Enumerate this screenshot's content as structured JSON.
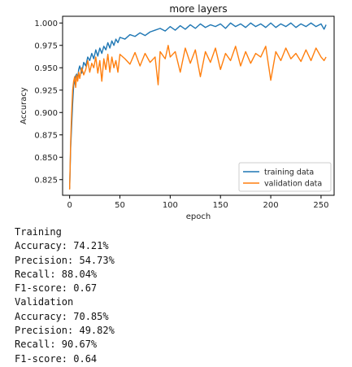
{
  "chart_data": {
    "type": "line",
    "title": "more layers",
    "xlabel": "epoch",
    "ylabel": "Accuracy",
    "xlim": [
      -7,
      263
    ],
    "ylim": [
      0.8075,
      1.0075
    ],
    "x_ticks": [
      0,
      50,
      100,
      150,
      200,
      250
    ],
    "y_ticks": [
      0.825,
      0.85,
      0.875,
      0.9,
      0.925,
      0.95,
      0.975,
      1.0
    ],
    "y_tick_labels": [
      "0.825",
      "0.850",
      "0.875",
      "0.900",
      "0.925",
      "0.950",
      "0.975",
      "1.000"
    ],
    "legend_position": "lower-right",
    "grid": false,
    "series": [
      {
        "name": "training data",
        "color": "#1f77b4",
        "x": [
          0,
          1,
          2,
          3,
          4,
          5,
          6,
          7,
          8,
          9,
          10,
          12,
          14,
          16,
          18,
          20,
          22,
          24,
          26,
          28,
          30,
          32,
          34,
          36,
          38,
          40,
          42,
          44,
          46,
          48,
          50,
          55,
          60,
          65,
          70,
          75,
          80,
          85,
          90,
          95,
          100,
          105,
          110,
          115,
          120,
          125,
          130,
          135,
          140,
          145,
          150,
          155,
          160,
          165,
          170,
          175,
          180,
          185,
          190,
          195,
          200,
          205,
          210,
          215,
          220,
          225,
          230,
          235,
          240,
          245,
          250,
          253,
          255
        ],
        "values": [
          0.815,
          0.86,
          0.885,
          0.91,
          0.93,
          0.935,
          0.941,
          0.943,
          0.938,
          0.948,
          0.952,
          0.944,
          0.956,
          0.952,
          0.962,
          0.958,
          0.966,
          0.96,
          0.97,
          0.963,
          0.972,
          0.966,
          0.974,
          0.97,
          0.978,
          0.972,
          0.98,
          0.975,
          0.982,
          0.978,
          0.984,
          0.982,
          0.987,
          0.985,
          0.989,
          0.986,
          0.99,
          0.992,
          0.994,
          0.991,
          0.996,
          0.992,
          0.997,
          0.993,
          0.998,
          0.994,
          0.999,
          0.995,
          0.998,
          0.996,
          0.999,
          0.994,
          1.0,
          0.996,
          0.999,
          0.995,
          1.0,
          0.996,
          0.999,
          0.995,
          1.0,
          0.995,
          0.999,
          0.996,
          1.0,
          0.995,
          0.999,
          0.996,
          1.0,
          0.996,
          0.999,
          0.993,
          0.998
        ]
      },
      {
        "name": "validation data",
        "color": "#ff7f0e",
        "x": [
          0,
          1,
          2,
          3,
          4,
          5,
          6,
          7,
          8,
          9,
          10,
          12,
          14,
          16,
          18,
          20,
          22,
          24,
          26,
          28,
          30,
          32,
          34,
          36,
          38,
          40,
          42,
          44,
          46,
          48,
          50,
          55,
          60,
          65,
          70,
          75,
          80,
          85,
          88,
          90,
          95,
          98,
          100,
          105,
          110,
          115,
          120,
          125,
          130,
          135,
          140,
          145,
          150,
          155,
          160,
          165,
          170,
          175,
          180,
          185,
          190,
          195,
          200,
          205,
          210,
          215,
          220,
          225,
          230,
          235,
          240,
          245,
          250,
          253,
          255
        ],
        "values": [
          0.814,
          0.866,
          0.9,
          0.925,
          0.935,
          0.94,
          0.928,
          0.942,
          0.935,
          0.945,
          0.938,
          0.95,
          0.942,
          0.948,
          0.958,
          0.945,
          0.955,
          0.95,
          0.962,
          0.944,
          0.958,
          0.935,
          0.96,
          0.948,
          0.965,
          0.945,
          0.962,
          0.95,
          0.958,
          0.945,
          0.965,
          0.96,
          0.954,
          0.967,
          0.952,
          0.966,
          0.956,
          0.962,
          0.931,
          0.968,
          0.96,
          0.975,
          0.962,
          0.968,
          0.945,
          0.972,
          0.955,
          0.97,
          0.94,
          0.968,
          0.956,
          0.972,
          0.948,
          0.966,
          0.958,
          0.974,
          0.952,
          0.968,
          0.955,
          0.966,
          0.962,
          0.974,
          0.936,
          0.968,
          0.958,
          0.972,
          0.96,
          0.966,
          0.957,
          0.97,
          0.958,
          0.972,
          0.962,
          0.958,
          0.962
        ]
      }
    ]
  },
  "metrics": {
    "training_heading": "Training",
    "training_accuracy": "Accuracy: 74.21%",
    "training_precision": "Precision: 54.73%",
    "training_recall": "Recall: 88.04%",
    "training_f1": "F1-score: 0.67",
    "validation_heading": "Validation",
    "validation_accuracy": "Accuracy: 70.85%",
    "validation_precision": "Precision: 49.82%",
    "validation_recall": "Recall: 90.67%",
    "validation_f1": "F1-score: 0.64"
  }
}
